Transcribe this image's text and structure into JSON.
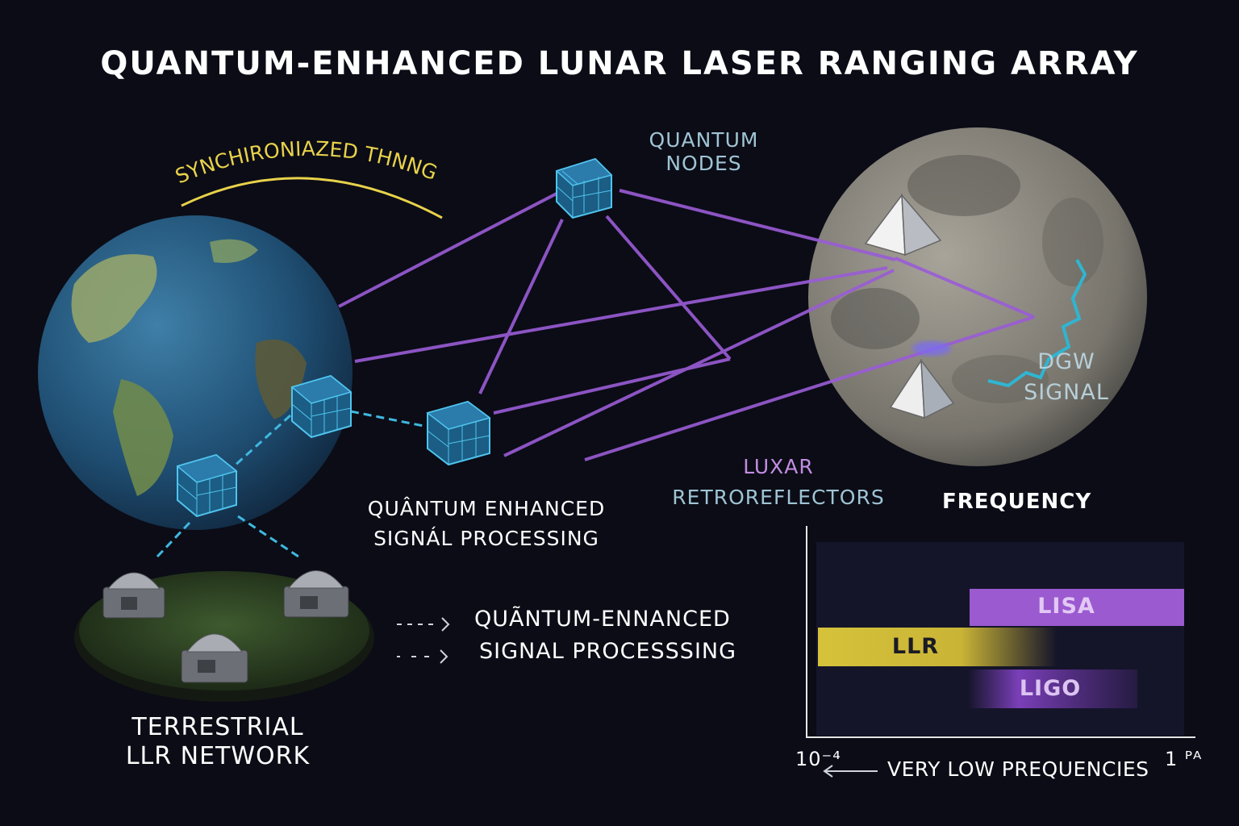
{
  "title": "QUANTUM-ENHANCED LUNAR LASER RANGING ARRAY",
  "labels": {
    "sync": "SYNCHIRONIAZED THNNG",
    "quantum_nodes": [
      "QUANTUM",
      "NODES"
    ],
    "qe_signal_processing": [
      "QUÂNTUM ENHANCED",
      "SIGNÁL PROCESSING"
    ],
    "luxar": [
      "LUXAR",
      "RETROREFLECTORS"
    ],
    "dgw": [
      "DGW",
      "SIGNAL"
    ],
    "terrestrial": [
      "TERRESTRIAL",
      "LLR NETWORK"
    ],
    "frequency": "FREQUENCY"
  },
  "legend": {
    "line1": "QUÃNTUM-ENNANCED",
    "line2": "SIGNAL PROCESSSING"
  },
  "freq_chart": {
    "left_tick": "10⁻⁴",
    "right_tick": "1 ᴾᴬ",
    "axis_note": "VERY LOW PREQUENCIES",
    "bands": [
      {
        "name": "LISA",
        "color": "#9b5ad0"
      },
      {
        "name": "LLR",
        "color": "#d6c23a"
      },
      {
        "name": "LIGO",
        "color": "#7a3fb8"
      }
    ]
  },
  "colors": {
    "laser": "#9a5cd6",
    "node": "#3fa7d6",
    "sync": "#e8d24a",
    "background": "#0b0c16"
  }
}
